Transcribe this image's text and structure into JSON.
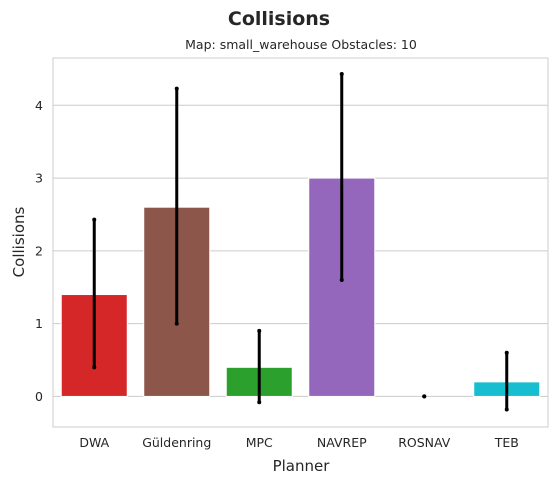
{
  "chart_data": {
    "type": "bar",
    "title": "Collisions",
    "subtitle": "Map: small_warehouse Obstacles: 10",
    "xlabel": "Planner",
    "ylabel": "Collisions",
    "categories": [
      "DWA",
      "Güldenring",
      "MPC",
      "NAVREP",
      "ROSNAV",
      "TEB"
    ],
    "values": [
      1.4,
      2.6,
      0.4,
      3.0,
      0.0,
      0.2
    ],
    "error_low": [
      0.4,
      1.0,
      -0.08,
      1.6,
      0.0,
      -0.18
    ],
    "error_high": [
      2.43,
      4.23,
      0.9,
      4.43,
      0.0,
      0.6
    ],
    "colors": [
      "#d62728",
      "#8c564b",
      "#2ca02c",
      "#ffffff",
      "#ffffff",
      "#17becf"
    ],
    "colors_override": {
      "NAVREP": "#9467bd"
    },
    "error_bar_color": "#000000",
    "ylim": [
      -0.42,
      4.65
    ],
    "yticks": [
      0,
      1,
      2,
      3,
      4
    ],
    "grid": "horizontal",
    "legend": "none"
  }
}
